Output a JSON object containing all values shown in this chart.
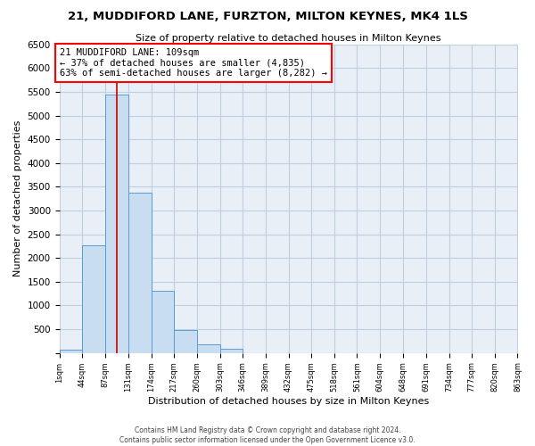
{
  "title": "21, MUDDIFORD LANE, FURZTON, MILTON KEYNES, MK4 1LS",
  "subtitle": "Size of property relative to detached houses in Milton Keynes",
  "xlabel": "Distribution of detached houses by size in Milton Keynes",
  "ylabel": "Number of detached properties",
  "bar_color": "#c9ddf0",
  "bar_edgecolor": "#5b9bd5",
  "grid_color": "#c0d0e0",
  "annotation_line_color": "#cc0000",
  "annotation_value": 109,
  "annotation_text_line1": "21 MUDDIFORD LANE: 109sqm",
  "annotation_text_line2": "← 37% of detached houses are smaller (4,835)",
  "annotation_text_line3": "63% of semi-detached houses are larger (8,282) →",
  "footer_line1": "Contains HM Land Registry data © Crown copyright and database right 2024.",
  "footer_line2": "Contains public sector information licensed under the Open Government Licence v3.0.",
  "bin_edges": [
    1,
    44,
    87,
    131,
    174,
    217,
    260,
    303,
    346,
    389,
    432,
    475,
    518,
    561,
    604,
    648,
    691,
    734,
    777,
    820,
    863
  ],
  "bin_labels": [
    "1sqm",
    "44sqm",
    "87sqm",
    "131sqm",
    "174sqm",
    "217sqm",
    "260sqm",
    "303sqm",
    "346sqm",
    "389sqm",
    "432sqm",
    "475sqm",
    "518sqm",
    "561sqm",
    "604sqm",
    "648sqm",
    "691sqm",
    "734sqm",
    "777sqm",
    "820sqm",
    "863sqm"
  ],
  "counts": [
    70,
    2270,
    5450,
    3380,
    1310,
    480,
    190,
    90,
    0,
    0,
    0,
    0,
    0,
    0,
    0,
    0,
    0,
    0,
    0,
    0
  ],
  "ylim": [
    0,
    6500
  ],
  "yticks": [
    0,
    500,
    1000,
    1500,
    2000,
    2500,
    3000,
    3500,
    4000,
    4500,
    5000,
    5500,
    6000,
    6500
  ],
  "background_color": "#ffffff",
  "plot_bg_color": "#e8eff6"
}
